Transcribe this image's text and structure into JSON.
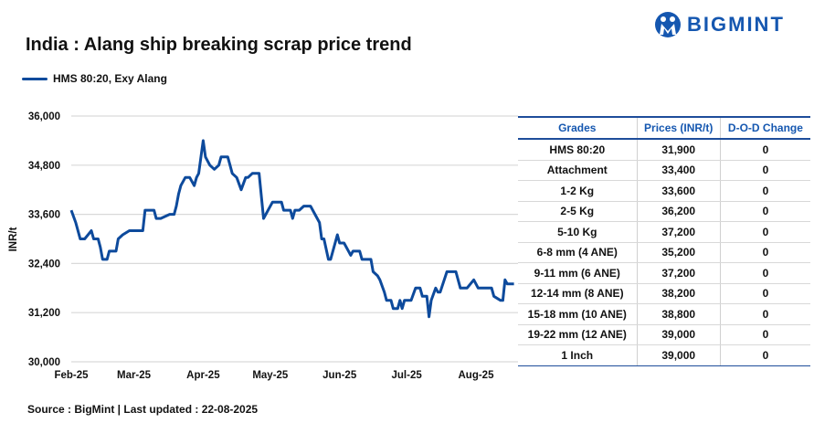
{
  "brand": {
    "name": "BIGMINT",
    "color": "#1557b0"
  },
  "chart_data": {
    "type": "line",
    "title": "India : Alang ship breaking scrap price trend",
    "ylabel": "INR/t",
    "xlabel": "",
    "ylim": [
      30000,
      36000
    ],
    "yticks": [
      "30,000",
      "31,200",
      "32,400",
      "33,600",
      "34,800",
      "36,000"
    ],
    "ytick_values": [
      30000,
      31200,
      32400,
      33600,
      34800,
      36000
    ],
    "xticks": [
      "Feb-25",
      "Mar-25",
      "Apr-25",
      "May-25",
      "Jun-25",
      "Jul-25",
      "Aug-25"
    ],
    "xtick_dates": [
      "2025-02-01",
      "2025-03-01",
      "2025-04-01",
      "2025-05-01",
      "2025-06-01",
      "2025-07-01",
      "2025-08-01"
    ],
    "grid": "horizontal",
    "legend_position": "top-left",
    "series": [
      {
        "name": "HMS 80:20, Exy Alang",
        "color": "#0d4a9c",
        "points": [
          [
            "2025-02-01",
            33700
          ],
          [
            "2025-02-03",
            33400
          ],
          [
            "2025-02-05",
            33000
          ],
          [
            "2025-02-07",
            33000
          ],
          [
            "2025-02-10",
            33200
          ],
          [
            "2025-02-11",
            33000
          ],
          [
            "2025-02-13",
            33000
          ],
          [
            "2025-02-14",
            32800
          ],
          [
            "2025-02-15",
            32500
          ],
          [
            "2025-02-17",
            32500
          ],
          [
            "2025-02-18",
            32700
          ],
          [
            "2025-02-21",
            32700
          ],
          [
            "2025-02-22",
            33000
          ],
          [
            "2025-02-24",
            33100
          ],
          [
            "2025-02-27",
            33200
          ],
          [
            "2025-03-05",
            33200
          ],
          [
            "2025-03-06",
            33700
          ],
          [
            "2025-03-10",
            33700
          ],
          [
            "2025-03-11",
            33500
          ],
          [
            "2025-03-13",
            33500
          ],
          [
            "2025-03-17",
            33600
          ],
          [
            "2025-03-19",
            33600
          ],
          [
            "2025-03-20",
            33800
          ],
          [
            "2025-03-21",
            34100
          ],
          [
            "2025-03-22",
            34300
          ],
          [
            "2025-03-24",
            34500
          ],
          [
            "2025-03-26",
            34500
          ],
          [
            "2025-03-28",
            34300
          ],
          [
            "2025-03-29",
            34500
          ],
          [
            "2025-03-30",
            34600
          ],
          [
            "2025-04-01",
            35400
          ],
          [
            "2025-04-02",
            35000
          ],
          [
            "2025-04-04",
            34800
          ],
          [
            "2025-04-06",
            34700
          ],
          [
            "2025-04-08",
            34800
          ],
          [
            "2025-04-09",
            35000
          ],
          [
            "2025-04-12",
            35000
          ],
          [
            "2025-04-13",
            34800
          ],
          [
            "2025-04-14",
            34600
          ],
          [
            "2025-04-16",
            34500
          ],
          [
            "2025-04-18",
            34200
          ],
          [
            "2025-04-20",
            34500
          ],
          [
            "2025-04-21",
            34500
          ],
          [
            "2025-04-23",
            34600
          ],
          [
            "2025-04-26",
            34600
          ],
          [
            "2025-04-28",
            33500
          ],
          [
            "2025-05-02",
            33900
          ],
          [
            "2025-05-06",
            33900
          ],
          [
            "2025-05-07",
            33700
          ],
          [
            "2025-05-10",
            33700
          ],
          [
            "2025-05-11",
            33500
          ],
          [
            "2025-05-12",
            33700
          ],
          [
            "2025-05-14",
            33700
          ],
          [
            "2025-05-16",
            33800
          ],
          [
            "2025-05-19",
            33800
          ],
          [
            "2025-05-21",
            33600
          ],
          [
            "2025-05-23",
            33400
          ],
          [
            "2025-05-24",
            33000
          ],
          [
            "2025-05-25",
            33000
          ],
          [
            "2025-05-27",
            32500
          ],
          [
            "2025-05-28",
            32500
          ],
          [
            "2025-05-31",
            33100
          ],
          [
            "2025-06-01",
            32900
          ],
          [
            "2025-06-03",
            32900
          ],
          [
            "2025-06-06",
            32600
          ],
          [
            "2025-06-07",
            32700
          ],
          [
            "2025-06-10",
            32700
          ],
          [
            "2025-06-11",
            32500
          ],
          [
            "2025-06-15",
            32500
          ],
          [
            "2025-06-16",
            32200
          ],
          [
            "2025-06-18",
            32100
          ],
          [
            "2025-06-19",
            32000
          ],
          [
            "2025-06-21",
            31700
          ],
          [
            "2025-06-22",
            31500
          ],
          [
            "2025-06-24",
            31500
          ],
          [
            "2025-06-25",
            31300
          ],
          [
            "2025-06-27",
            31300
          ],
          [
            "2025-06-28",
            31500
          ],
          [
            "2025-06-29",
            31300
          ],
          [
            "2025-06-30",
            31500
          ],
          [
            "2025-07-03",
            31500
          ],
          [
            "2025-07-05",
            31800
          ],
          [
            "2025-07-07",
            31800
          ],
          [
            "2025-07-08",
            31600
          ],
          [
            "2025-07-10",
            31600
          ],
          [
            "2025-07-11",
            31100
          ],
          [
            "2025-07-12",
            31500
          ],
          [
            "2025-07-14",
            31800
          ],
          [
            "2025-07-15",
            31700
          ],
          [
            "2025-07-16",
            31700
          ],
          [
            "2025-07-19",
            32200
          ],
          [
            "2025-07-23",
            32200
          ],
          [
            "2025-07-25",
            31800
          ],
          [
            "2025-07-28",
            31800
          ],
          [
            "2025-07-31",
            32000
          ],
          [
            "2025-08-02",
            31800
          ],
          [
            "2025-08-05",
            31800
          ],
          [
            "2025-08-08",
            31800
          ],
          [
            "2025-08-09",
            31600
          ],
          [
            "2025-08-12",
            31500
          ],
          [
            "2025-08-13",
            31500
          ],
          [
            "2025-08-14",
            32000
          ],
          [
            "2025-08-15",
            31900
          ],
          [
            "2025-08-18",
            31900
          ]
        ]
      }
    ]
  },
  "table": {
    "headers": [
      "Grades",
      "Prices (INR/t)",
      "D-O-D Change"
    ],
    "rows": [
      [
        "HMS 80:20",
        "31,900",
        "0"
      ],
      [
        "Attachment",
        "33,400",
        "0"
      ],
      [
        "1-2 Kg",
        "33,600",
        "0"
      ],
      [
        "2-5 Kg",
        "36,200",
        "0"
      ],
      [
        "5-10 Kg",
        "37,200",
        "0"
      ],
      [
        "6-8 mm (4 ANE)",
        "35,200",
        "0"
      ],
      [
        "9-11 mm (6 ANE)",
        "37,200",
        "0"
      ],
      [
        "12-14 mm (8 ANE)",
        "38,200",
        "0"
      ],
      [
        "15-18 mm (10 ANE)",
        "38,800",
        "0"
      ],
      [
        "19-22 mm (12 ANE)",
        "39,000",
        "0"
      ],
      [
        "1 Inch",
        "39,000",
        "0"
      ]
    ]
  },
  "source": "Source : BigMint | Last updated : 22-08-2025"
}
